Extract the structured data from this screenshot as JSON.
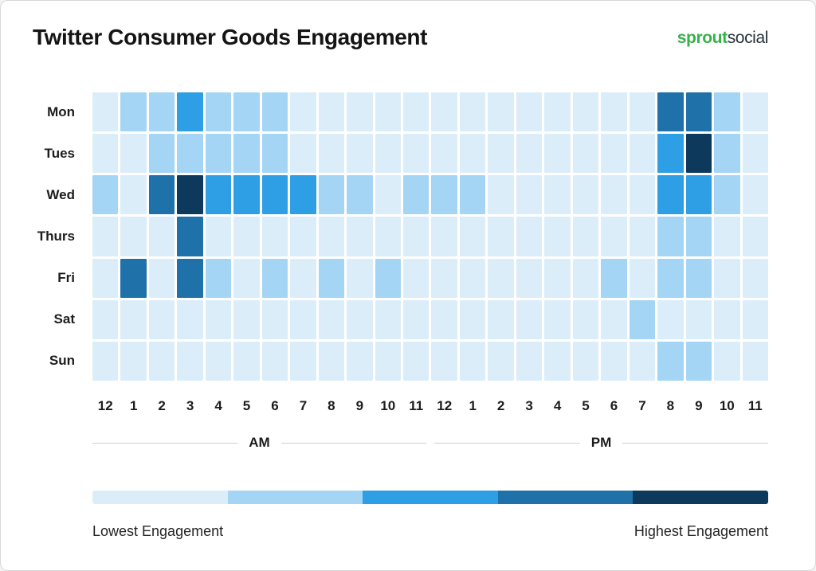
{
  "header": {
    "title": "Twitter Consumer Goods Engagement",
    "logo": {
      "bold": "sprout",
      "regular": "social"
    }
  },
  "colors": {
    "logo_green": "#35b24a",
    "logo_dark": "#26333b"
  },
  "chart_data": {
    "type": "heatmap",
    "title": "Twitter Consumer Goods Engagement",
    "rows": [
      "Mon",
      "Tues",
      "Wed",
      "Thurs",
      "Fri",
      "Sat",
      "Sun"
    ],
    "columns": [
      "12",
      "1",
      "2",
      "3",
      "4",
      "5",
      "6",
      "7",
      "8",
      "9",
      "10",
      "11",
      "12",
      "1",
      "2",
      "3",
      "4",
      "5",
      "6",
      "7",
      "8",
      "9",
      "10",
      "11"
    ],
    "period_labels": [
      "AM",
      "PM"
    ],
    "levels": {
      "scale": [
        "lowest",
        "low",
        "medium",
        "high",
        "highest"
      ],
      "palette": [
        "#DCEDFA",
        "#A5D5F4",
        "#2E9EE5",
        "#1E71A9",
        "#0D3A5C"
      ]
    },
    "values": [
      [
        0,
        1,
        1,
        2,
        1,
        1,
        1,
        0,
        0,
        0,
        0,
        0,
        0,
        0,
        0,
        0,
        0,
        0,
        0,
        0,
        3,
        3,
        1,
        0
      ],
      [
        0,
        0,
        1,
        1,
        1,
        1,
        1,
        0,
        0,
        0,
        0,
        0,
        0,
        0,
        0,
        0,
        0,
        0,
        0,
        0,
        2,
        4,
        1,
        0
      ],
      [
        1,
        0,
        3,
        4,
        2,
        2,
        2,
        2,
        1,
        1,
        0,
        1,
        1,
        1,
        0,
        0,
        0,
        0,
        0,
        0,
        2,
        2,
        1,
        0
      ],
      [
        0,
        0,
        0,
        3,
        0,
        0,
        0,
        0,
        0,
        0,
        0,
        0,
        0,
        0,
        0,
        0,
        0,
        0,
        0,
        0,
        1,
        1,
        0,
        0
      ],
      [
        0,
        3,
        0,
        3,
        1,
        0,
        1,
        0,
        1,
        0,
        1,
        0,
        0,
        0,
        0,
        0,
        0,
        0,
        1,
        0,
        1,
        1,
        0,
        0
      ],
      [
        0,
        0,
        0,
        0,
        0,
        0,
        0,
        0,
        0,
        0,
        0,
        0,
        0,
        0,
        0,
        0,
        0,
        0,
        0,
        1,
        0,
        0,
        0,
        0
      ],
      [
        0,
        0,
        0,
        0,
        0,
        0,
        0,
        0,
        0,
        0,
        0,
        0,
        0,
        0,
        0,
        0,
        0,
        0,
        0,
        0,
        1,
        1,
        0,
        0
      ]
    ],
    "legend": {
      "low_label": "Lowest Engagement",
      "high_label": "Highest Engagement"
    }
  }
}
